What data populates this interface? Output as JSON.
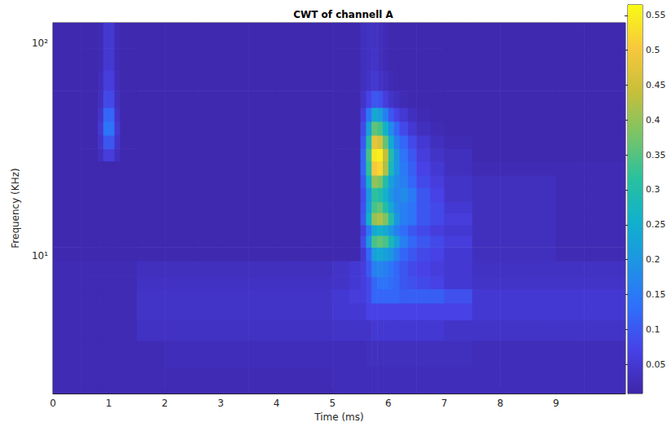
{
  "chart_data": {
    "type": "heatmap",
    "title": "CWT of channell A",
    "x_label": "Time (ms)",
    "y_label": "Frequency (KHz)",
    "xlim": [
      0,
      10.24
    ],
    "xticks": [
      0,
      1,
      2,
      3,
      4,
      5,
      6,
      7,
      8,
      9
    ],
    "ylim": [
      2.25,
      125
    ],
    "yticks": [
      {
        "value": 10,
        "label": "10¹"
      },
      {
        "value": 100,
        "label": "10²"
      }
    ],
    "log": "y",
    "grid": false,
    "time_edges": [
      0,
      0.5,
      0.8,
      0.9,
      1.0,
      1.1,
      1.2,
      1.5,
      2,
      2.5,
      3,
      3.5,
      4,
      4.5,
      5,
      5.3,
      5.5,
      5.6,
      5.7,
      5.8,
      5.9,
      6.0,
      6.1,
      6.2,
      6.35,
      6.5,
      6.75,
      7,
      7.5,
      8,
      8.5,
      9,
      9.5,
      10.24
    ],
    "frequency_edges": [
      2.25,
      3,
      4,
      5,
      6,
      7,
      8,
      9.5,
      11,
      12.5,
      14,
      16,
      18,
      21,
      24,
      28,
      32,
      37,
      43,
      50,
      60,
      75,
      95,
      125
    ],
    "cells": [
      [
        0.02,
        0.02,
        0.02,
        0.02,
        0.02,
        0.02,
        0.02,
        0.02,
        0.02,
        0.02,
        0.02,
        0.02,
        0.02,
        0.02,
        0.025,
        0.025,
        0.025,
        0.025,
        0.025,
        0.025,
        0.025,
        0.025,
        0.025,
        0.025,
        0.025,
        0.025,
        0.025,
        0.025,
        0.025,
        0.025,
        0.025,
        0.025,
        0.025
      ],
      [
        0.02,
        0.02,
        0.02,
        0.02,
        0.02,
        0.02,
        0.02,
        0.02,
        0.025,
        0.025,
        0.025,
        0.025,
        0.025,
        0.025,
        0.025,
        0.025,
        0.025,
        0.03,
        0.03,
        0.03,
        0.03,
        0.03,
        0.03,
        0.03,
        0.03,
        0.03,
        0.03,
        0.03,
        0.025,
        0.025,
        0.025,
        0.025,
        0.025
      ],
      [
        0.02,
        0.02,
        0.02,
        0.02,
        0.02,
        0.02,
        0.02,
        0.035,
        0.035,
        0.035,
        0.035,
        0.035,
        0.035,
        0.035,
        0.04,
        0.04,
        0.04,
        0.04,
        0.05,
        0.05,
        0.05,
        0.05,
        0.05,
        0.05,
        0.05,
        0.05,
        0.05,
        0.04,
        0.04,
        0.04,
        0.04,
        0.04,
        0.04
      ],
      [
        0.02,
        0.02,
        0.02,
        0.02,
        0.02,
        0.02,
        0.02,
        0.04,
        0.04,
        0.04,
        0.04,
        0.04,
        0.04,
        0.04,
        0.05,
        0.05,
        0.05,
        0.07,
        0.07,
        0.07,
        0.07,
        0.07,
        0.07,
        0.07,
        0.07,
        0.07,
        0.07,
        0.07,
        0.05,
        0.05,
        0.05,
        0.05,
        0.05
      ],
      [
        0.02,
        0.02,
        0.02,
        0.02,
        0.02,
        0.02,
        0.02,
        0.04,
        0.04,
        0.04,
        0.04,
        0.04,
        0.04,
        0.04,
        0.05,
        0.06,
        0.06,
        0.08,
        0.12,
        0.12,
        0.12,
        0.12,
        0.12,
        0.11,
        0.11,
        0.11,
        0.11,
        0.09,
        0.05,
        0.05,
        0.05,
        0.05,
        0.05
      ],
      [
        0.02,
        0.02,
        0.02,
        0.02,
        0.02,
        0.02,
        0.02,
        0.035,
        0.035,
        0.035,
        0.035,
        0.035,
        0.035,
        0.035,
        0.04,
        0.05,
        0.06,
        0.08,
        0.12,
        0.14,
        0.14,
        0.13,
        0.12,
        0.1,
        0.09,
        0.08,
        0.07,
        0.05,
        0.04,
        0.04,
        0.04,
        0.04,
        0.04
      ],
      [
        0.02,
        0.02,
        0.02,
        0.02,
        0.02,
        0.02,
        0.02,
        0.03,
        0.03,
        0.03,
        0.03,
        0.03,
        0.03,
        0.03,
        0.04,
        0.05,
        0.06,
        0.1,
        0.16,
        0.17,
        0.16,
        0.14,
        0.12,
        0.1,
        0.08,
        0.07,
        0.06,
        0.05,
        0.035,
        0.035,
        0.035,
        0.035,
        0.035
      ],
      [
        0.015,
        0.015,
        0.015,
        0.015,
        0.015,
        0.015,
        0.015,
        0.015,
        0.015,
        0.015,
        0.015,
        0.015,
        0.015,
        0.015,
        0.015,
        0.015,
        0.05,
        0.12,
        0.22,
        0.24,
        0.22,
        0.2,
        0.16,
        0.12,
        0.1,
        0.08,
        0.07,
        0.05,
        0.03,
        0.03,
        0.03,
        0.02,
        0.02
      ],
      [
        0.015,
        0.015,
        0.015,
        0.015,
        0.015,
        0.015,
        0.015,
        0.015,
        0.015,
        0.015,
        0.015,
        0.015,
        0.015,
        0.015,
        0.015,
        0.015,
        0.08,
        0.2,
        0.34,
        0.36,
        0.34,
        0.28,
        0.22,
        0.16,
        0.12,
        0.1,
        0.08,
        0.06,
        0.03,
        0.03,
        0.03,
        0.02,
        0.02
      ],
      [
        0.015,
        0.015,
        0.015,
        0.015,
        0.015,
        0.015,
        0.015,
        0.015,
        0.015,
        0.015,
        0.015,
        0.015,
        0.015,
        0.015,
        0.015,
        0.015,
        0.06,
        0.14,
        0.24,
        0.26,
        0.24,
        0.2,
        0.16,
        0.13,
        0.1,
        0.08,
        0.06,
        0.05,
        0.03,
        0.03,
        0.03,
        0.02,
        0.02
      ],
      [
        0.015,
        0.015,
        0.015,
        0.015,
        0.015,
        0.015,
        0.015,
        0.015,
        0.015,
        0.015,
        0.015,
        0.015,
        0.015,
        0.015,
        0.015,
        0.015,
        0.1,
        0.26,
        0.4,
        0.42,
        0.38,
        0.3,
        0.2,
        0.16,
        0.14,
        0.1,
        0.08,
        0.06,
        0.03,
        0.03,
        0.03,
        0.02,
        0.02
      ],
      [
        0.015,
        0.015,
        0.015,
        0.015,
        0.015,
        0.015,
        0.015,
        0.015,
        0.015,
        0.015,
        0.015,
        0.015,
        0.015,
        0.015,
        0.015,
        0.015,
        0.09,
        0.22,
        0.34,
        0.36,
        0.3,
        0.24,
        0.18,
        0.16,
        0.14,
        0.1,
        0.08,
        0.05,
        0.03,
        0.03,
        0.03,
        0.02,
        0.02
      ],
      [
        0.015,
        0.015,
        0.015,
        0.015,
        0.015,
        0.015,
        0.015,
        0.015,
        0.015,
        0.015,
        0.015,
        0.015,
        0.015,
        0.015,
        0.015,
        0.015,
        0.08,
        0.2,
        0.32,
        0.3,
        0.26,
        0.2,
        0.17,
        0.18,
        0.15,
        0.1,
        0.07,
        0.04,
        0.03,
        0.03,
        0.03,
        0.02,
        0.02
      ],
      [
        0.015,
        0.015,
        0.015,
        0.015,
        0.015,
        0.015,
        0.015,
        0.015,
        0.015,
        0.015,
        0.015,
        0.015,
        0.015,
        0.015,
        0.015,
        0.015,
        0.1,
        0.26,
        0.4,
        0.38,
        0.3,
        0.22,
        0.18,
        0.16,
        0.12,
        0.08,
        0.06,
        0.04,
        0.03,
        0.03,
        0.03,
        0.02,
        0.02
      ],
      [
        0.015,
        0.015,
        0.015,
        0.015,
        0.015,
        0.015,
        0.015,
        0.015,
        0.015,
        0.015,
        0.015,
        0.015,
        0.015,
        0.015,
        0.015,
        0.015,
        0.12,
        0.32,
        0.5,
        0.52,
        0.42,
        0.28,
        0.2,
        0.15,
        0.11,
        0.07,
        0.05,
        0.03,
        0.02,
        0.02,
        0.02,
        0.02,
        0.02
      ],
      [
        0.015,
        0.015,
        0.03,
        0.06,
        0.06,
        0.03,
        0.015,
        0.015,
        0.015,
        0.015,
        0.015,
        0.015,
        0.015,
        0.015,
        0.015,
        0.015,
        0.12,
        0.34,
        0.54,
        0.55,
        0.44,
        0.3,
        0.2,
        0.14,
        0.1,
        0.06,
        0.04,
        0.03,
        0.015,
        0.015,
        0.015,
        0.015,
        0.015
      ],
      [
        0.015,
        0.015,
        0.04,
        0.1,
        0.1,
        0.04,
        0.015,
        0.015,
        0.015,
        0.015,
        0.015,
        0.015,
        0.015,
        0.015,
        0.015,
        0.015,
        0.1,
        0.3,
        0.48,
        0.46,
        0.36,
        0.24,
        0.16,
        0.12,
        0.08,
        0.05,
        0.03,
        0.02,
        0.015,
        0.015,
        0.015,
        0.015,
        0.015
      ],
      [
        0.015,
        0.015,
        0.05,
        0.14,
        0.14,
        0.05,
        0.015,
        0.015,
        0.015,
        0.015,
        0.015,
        0.015,
        0.015,
        0.015,
        0.015,
        0.015,
        0.08,
        0.22,
        0.36,
        0.34,
        0.26,
        0.18,
        0.12,
        0.08,
        0.05,
        0.03,
        0.02,
        0.015,
        0.015,
        0.015,
        0.015,
        0.015,
        0.015
      ],
      [
        0.015,
        0.015,
        0.04,
        0.12,
        0.12,
        0.04,
        0.015,
        0.015,
        0.015,
        0.015,
        0.015,
        0.015,
        0.015,
        0.015,
        0.015,
        0.015,
        0.06,
        0.14,
        0.24,
        0.22,
        0.16,
        0.1,
        0.07,
        0.05,
        0.03,
        0.02,
        0.015,
        0.015,
        0.015,
        0.015,
        0.015,
        0.015,
        0.015
      ],
      [
        0.015,
        0.015,
        0.03,
        0.08,
        0.08,
        0.03,
        0.015,
        0.015,
        0.015,
        0.015,
        0.015,
        0.015,
        0.015,
        0.015,
        0.015,
        0.015,
        0.04,
        0.07,
        0.1,
        0.09,
        0.06,
        0.04,
        0.03,
        0.02,
        0.015,
        0.015,
        0.015,
        0.015,
        0.015,
        0.015,
        0.015,
        0.015,
        0.015
      ],
      [
        0.015,
        0.015,
        0.025,
        0.06,
        0.06,
        0.025,
        0.015,
        0.015,
        0.015,
        0.015,
        0.015,
        0.015,
        0.015,
        0.015,
        0.015,
        0.015,
        0.03,
        0.04,
        0.05,
        0.04,
        0.03,
        0.02,
        0.015,
        0.015,
        0.015,
        0.015,
        0.015,
        0.015,
        0.015,
        0.015,
        0.015,
        0.015,
        0.015
      ],
      [
        0.015,
        0.015,
        0.02,
        0.05,
        0.05,
        0.02,
        0.015,
        0.015,
        0.015,
        0.015,
        0.015,
        0.015,
        0.015,
        0.015,
        0.015,
        0.015,
        0.03,
        0.035,
        0.04,
        0.03,
        0.02,
        0.015,
        0.015,
        0.015,
        0.015,
        0.015,
        0.015,
        0.015,
        0.015,
        0.015,
        0.015,
        0.015,
        0.015
      ],
      [
        0.015,
        0.015,
        0.02,
        0.05,
        0.05,
        0.02,
        0.015,
        0.015,
        0.015,
        0.015,
        0.015,
        0.015,
        0.015,
        0.015,
        0.015,
        0.015,
        0.03,
        0.035,
        0.035,
        0.03,
        0.02,
        0.015,
        0.015,
        0.015,
        0.015,
        0.015,
        0.015,
        0.015,
        0.015,
        0.015,
        0.015,
        0.015,
        0.015
      ]
    ],
    "color_range": [
      0.008,
      0.565
    ],
    "color_ticks": [
      0.05,
      0.1,
      0.15,
      0.2,
      0.25,
      0.3,
      0.35,
      0.4,
      0.45,
      0.5,
      0.55
    ]
  }
}
